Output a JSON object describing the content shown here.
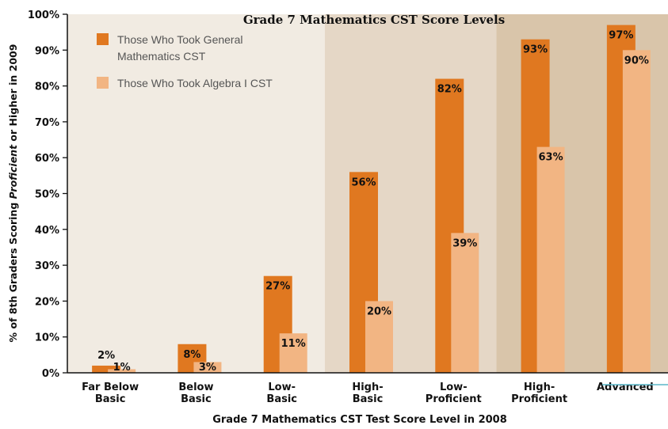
{
  "chart_data": {
    "type": "bar",
    "title": "Grade 7 Mathematics CST Score Levels",
    "xlabel": "Grade 7 Mathematics CST Test Score Level in 2008",
    "ylabel_parts": [
      "% of 8th Graders Scoring ",
      "Proficient",
      " or Higher in 2009"
    ],
    "ylim": [
      0,
      100
    ],
    "yticks": [
      "0%",
      "10%",
      "20%",
      "30%",
      "40%",
      "50%",
      "60%",
      "70%",
      "80%",
      "90%",
      "100%"
    ],
    "categories": [
      [
        "Far Below",
        "Basic"
      ],
      [
        "Below",
        "Basic"
      ],
      [
        "Low-",
        "Basic"
      ],
      [
        "High-",
        "Basic"
      ],
      [
        "Low-",
        "Proficient"
      ],
      [
        "High-",
        "Proficient"
      ],
      [
        "Advanced"
      ]
    ],
    "series": [
      {
        "name": "Those Who Took General Mathematics CST",
        "legend_lines": [
          "Those Who Took General",
          "Mathematics CST"
        ],
        "color": "#E07820",
        "values": [
          2,
          8,
          27,
          56,
          82,
          93,
          97
        ],
        "labels": [
          "2%",
          "8%",
          "27%",
          "56%",
          "82%",
          "93%",
          "97%"
        ]
      },
      {
        "name": "Those Who Took Algebra I CST",
        "legend_lines": [
          "Those Who Took Algebra I CST"
        ],
        "color": "#F2B583",
        "values": [
          1,
          3,
          11,
          20,
          39,
          63,
          90
        ],
        "labels": [
          "1%",
          "3%",
          "11%",
          "20%",
          "39%",
          "63%",
          "90%"
        ]
      }
    ],
    "background_bands": [
      {
        "color": "#F1EBE2",
        "categories": [
          0,
          1,
          2
        ]
      },
      {
        "color": "#E5D7C6",
        "categories": [
          3,
          4
        ]
      },
      {
        "color": "#D9C5AA",
        "categories": [
          5,
          6
        ]
      }
    ],
    "grid": false,
    "legend_position": "top-left"
  }
}
